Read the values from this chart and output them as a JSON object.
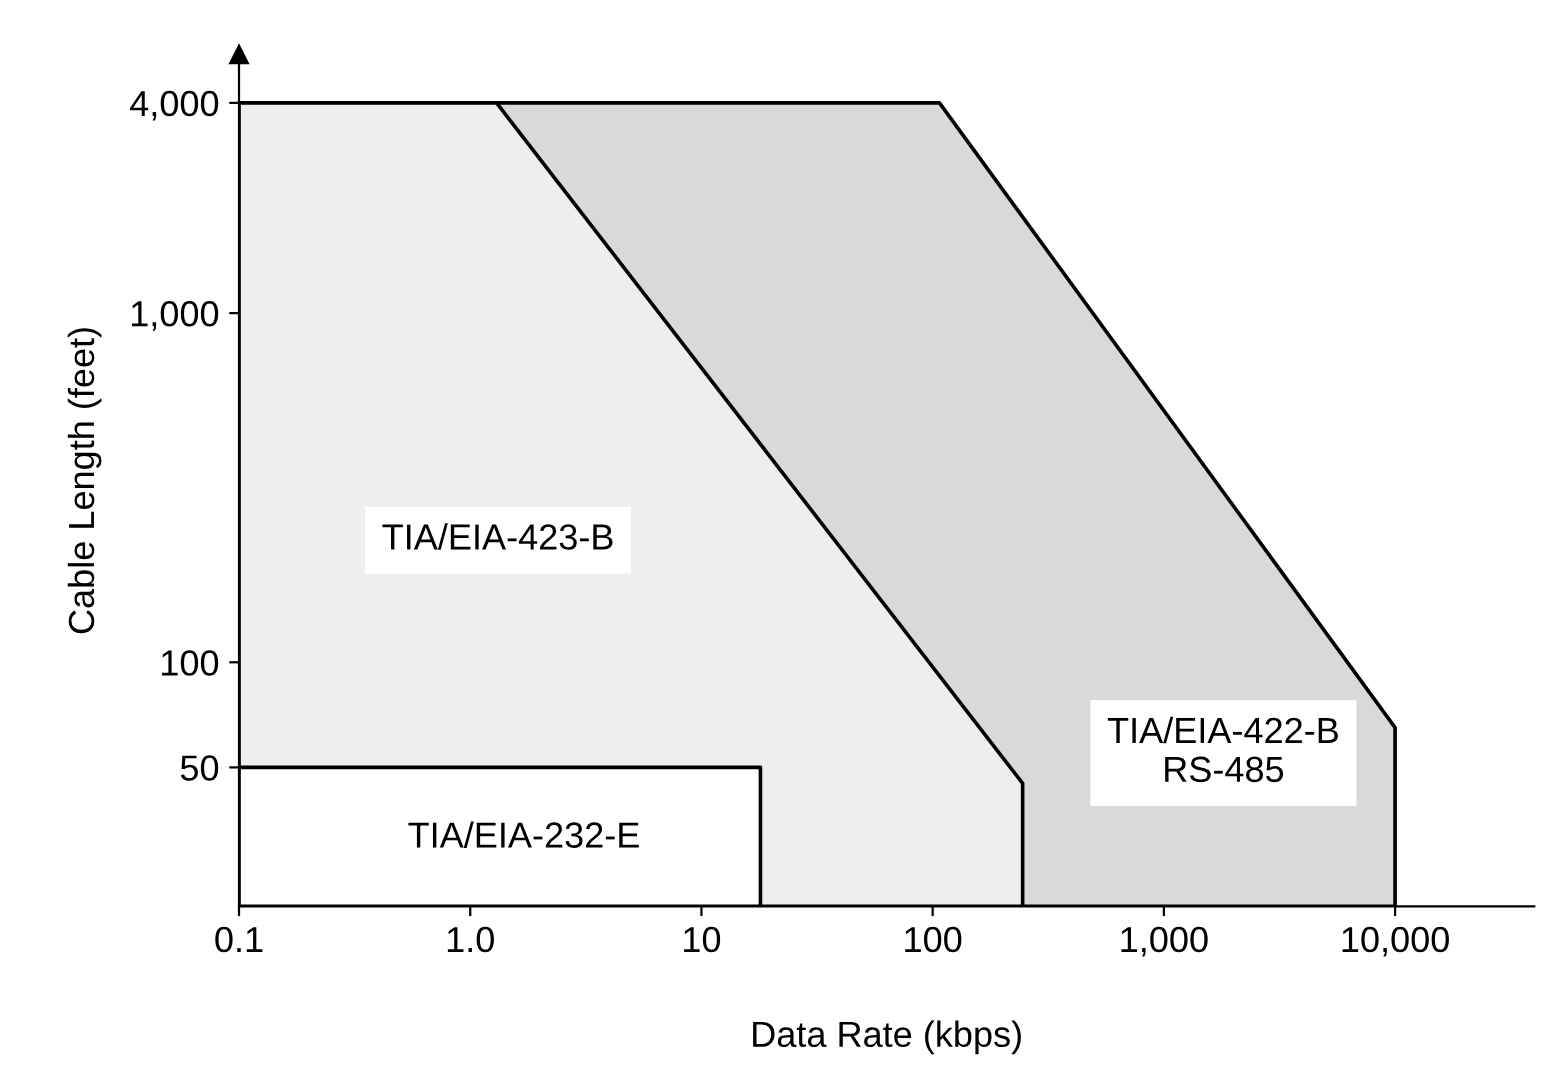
{
  "chart_data": {
    "type": "area",
    "xlabel": "Data Rate (kbps)",
    "ylabel": "Cable Length (feet)",
    "log": "xy",
    "grid": false,
    "legend": false,
    "xlim": [
      0.1,
      40000
    ],
    "ylim": [
      20,
      5500
    ],
    "xticks": [
      0.1,
      {
        "value": 1,
        "label": "1.0"
      },
      10,
      100,
      {
        "value": 1000,
        "label": "1,000"
      },
      {
        "value": 10000,
        "label": "10,000"
      }
    ],
    "yticks": [
      50,
      100,
      {
        "value": 1000,
        "label": "1,000"
      },
      {
        "value": 4000,
        "label": "4,000"
      }
    ],
    "series": [
      {
        "name": "TIA/EIA-422-B\nRS-485",
        "color": "#d9d9d9",
        "x": [
          1.3,
          107,
          10000,
          10000
        ],
        "values": [
          4000,
          4000,
          65,
          20
        ]
      },
      {
        "name": "TIA/EIA-423-B",
        "color": "#eeeeee",
        "x": [
          0.1,
          1.3,
          245,
          245
        ],
        "values": [
          4000,
          4000,
          45,
          20
        ]
      },
      {
        "name": "TIA/EIA-232-E",
        "color": "#ffffff",
        "x": [
          0.1,
          18,
          18
        ],
        "values": [
          50,
          50,
          20
        ]
      }
    ]
  }
}
